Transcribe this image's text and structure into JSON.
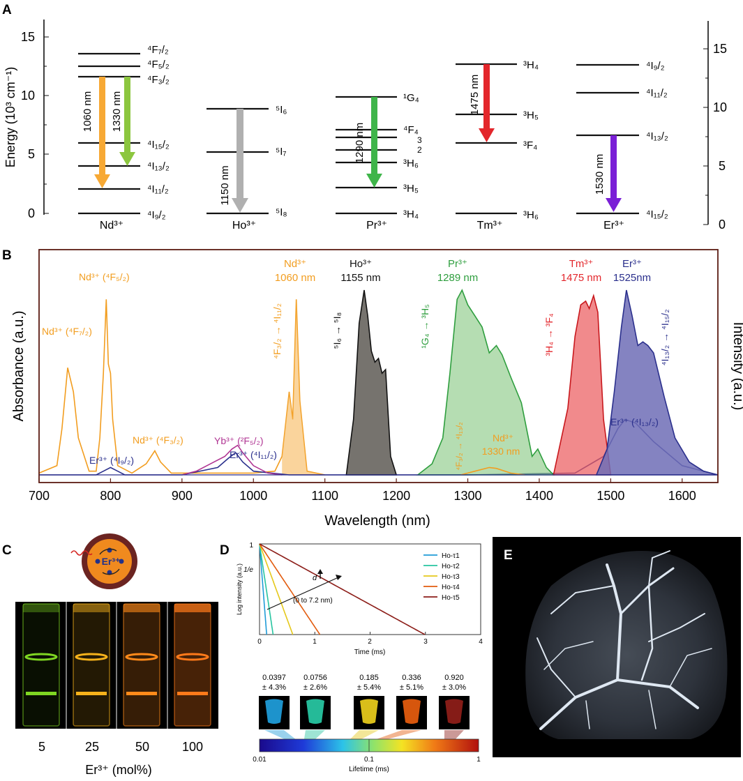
{
  "figure": {
    "panels": {
      "a": "A",
      "b": "B",
      "c": "C",
      "d": "D",
      "e": "E"
    }
  },
  "panel_a": {
    "y_axis_label": "Energy (10³ cm⁻¹)",
    "left_ticks": [
      "0",
      "5",
      "10",
      "15"
    ],
    "right_ticks": [
      "0",
      "5",
      "10",
      "15"
    ],
    "ions": [
      {
        "name": "Nd³⁺",
        "levels": [
          "⁴F₇/₂",
          "⁴F₅/₂",
          "⁴F₃/₂",
          "⁴I₁₅/₂",
          "⁴I₁₃/₂",
          "⁴I₁₁/₂",
          "⁴I₉/₂"
        ],
        "transitions": [
          {
            "label": "1060 nm",
            "color": "#f7a935"
          },
          {
            "label": "1330 nm",
            "color": "#8cc63f"
          }
        ]
      },
      {
        "name": "Ho³⁺",
        "levels": [
          "⁵I₆",
          "⁵I₇",
          "⁵I₈"
        ],
        "transitions": [
          {
            "label": "1150 nm",
            "color": "#b0b0b0"
          }
        ]
      },
      {
        "name": "Pr³⁺",
        "levels": [
          "¹G₄",
          "⁴F₄",
          "3",
          "2",
          "³H₆",
          "³H₅",
          "³H₄"
        ],
        "transitions": [
          {
            "label": "1290 nm",
            "color": "#3fb54a"
          }
        ]
      },
      {
        "name": "Tm³⁺",
        "levels": [
          "³H₄",
          "³H₅",
          "³F₄",
          "³H₆"
        ],
        "transitions": [
          {
            "label": "1475 nm",
            "color": "#e3262b"
          }
        ]
      },
      {
        "name": "Er³⁺",
        "levels": [
          "⁴I₉/₂",
          "⁴I₁₁/₂",
          "⁴I₁₃/₂",
          "⁴I₁₅/₂"
        ],
        "transitions": [
          {
            "label": "1530 nm",
            "color": "#7a1fd6"
          }
        ]
      }
    ]
  },
  "chart_data": [
    {
      "type": "area",
      "panel": "B",
      "xlabel": "Wavelength (nm)",
      "ylabel_left": "Absorbance (a.u.)",
      "ylabel_right": "Intensity (a.u.)",
      "xlim": [
        700,
        1650
      ],
      "x_ticks": [
        "700",
        "800",
        "900",
        "1000",
        "1100",
        "1200",
        "1300",
        "1400",
        "1500",
        "1600"
      ],
      "annotations": [
        "Nd³⁺ (⁴F₇/₂)",
        "Nd³⁺ (⁴F₅/₂)",
        "Nd³⁺ (⁴F₃/₂)",
        "Er³⁺ (⁴I₉/₂)",
        "Yb³⁺ (²F₅/₂)",
        "Er³⁺ (⁴I₁₁/₂)",
        "⁴F₃/₂ → ⁴I₁₁/₂",
        "⁵I₆ → ⁵I₈",
        "¹G₄ → ³H₅",
        "³H₄ → ³F₄",
        "⁴I₁₃/₂ → ⁴I₁₅/₂",
        "⁴F₃/₂ → ⁴I₁₃/₂",
        "Er³⁺ (⁴I₁₃/₂)"
      ],
      "peak_labels": [
        {
          "ion": "Nd³⁺",
          "wavelength": "1060 nm",
          "color": "#f29d1f"
        },
        {
          "ion": "Ho³⁺",
          "wavelength": "1155 nm",
          "color": "#111111"
        },
        {
          "ion": "Pr³⁺",
          "wavelength": "1289 nm",
          "color": "#2e9e3e"
        },
        {
          "ion": "Tm³⁺",
          "wavelength": "1475 nm",
          "color": "#e3262b"
        },
        {
          "ion": "Er³⁺",
          "wavelength": "1525nm",
          "color": "#2a2f8c"
        },
        {
          "ion": "Nd³⁺",
          "wavelength": "1330 nm",
          "color": "#f29d1f"
        }
      ],
      "series": [
        {
          "name": "Nd³⁺ absorbance",
          "color": "#f29d1f",
          "x": [
            700,
            725,
            732,
            740,
            748,
            755,
            770,
            780,
            785,
            790,
            794,
            797,
            800,
            803,
            810,
            830,
            850,
            862,
            870,
            885,
            900,
            950,
            1000,
            1030,
            1040,
            1050,
            1055,
            1060,
            1065,
            1075,
            1100
          ],
          "y": [
            0.01,
            0.05,
            0.25,
            0.58,
            0.45,
            0.2,
            0.02,
            0.02,
            0.2,
            0.55,
            0.95,
            0.6,
            0.55,
            0.3,
            0.05,
            0.01,
            0.06,
            0.13,
            0.07,
            0.01,
            0.01,
            0.01,
            0.01,
            0.02,
            0.1,
            0.45,
            0.3,
            0.95,
            0.4,
            0.02,
            0.0
          ]
        },
        {
          "name": "Er³⁺ absorbance",
          "color": "#2a2f8c",
          "x": [
            700,
            780,
            790,
            800,
            810,
            820,
            900,
            950,
            965,
            975,
            985,
            1000,
            1050,
            1300,
            1450,
            1490,
            1510,
            1520,
            1535,
            1560,
            1600,
            1650
          ],
          "y": [
            0.0,
            0.0,
            0.02,
            0.04,
            0.02,
            0.0,
            0.0,
            0.04,
            0.09,
            0.12,
            0.07,
            0.02,
            0.0,
            0.0,
            0.01,
            0.1,
            0.25,
            0.3,
            0.28,
            0.18,
            0.05,
            0.0
          ]
        },
        {
          "name": "Yb³⁺ absorbance",
          "color": "#b03593",
          "x": [
            900,
            920,
            940,
            960,
            970,
            978,
            985,
            1000,
            1020,
            1040
          ],
          "y": [
            0.0,
            0.02,
            0.06,
            0.1,
            0.14,
            0.16,
            0.12,
            0.05,
            0.01,
            0.0
          ]
        },
        {
          "name": "Ho³⁺ 1155 nm emission",
          "color": "#6f6b66",
          "x": [
            1130,
            1140,
            1148,
            1155,
            1160,
            1165,
            1170,
            1175,
            1180,
            1185,
            1192,
            1200
          ],
          "y": [
            0.0,
            0.3,
            0.82,
            1.0,
            0.86,
            0.67,
            0.61,
            0.63,
            0.55,
            0.57,
            0.1,
            0.0
          ]
        },
        {
          "name": "Pr³⁺ 1289 nm emission",
          "color": "#84c77e",
          "x": [
            1230,
            1250,
            1265,
            1275,
            1285,
            1292,
            1300,
            1310,
            1320,
            1330,
            1340,
            1348,
            1360,
            1375,
            1390,
            1398,
            1410,
            1420
          ],
          "y": [
            0.0,
            0.06,
            0.2,
            0.55,
            0.95,
            1.0,
            0.92,
            0.86,
            0.8,
            0.66,
            0.7,
            0.65,
            0.53,
            0.39,
            0.1,
            0.14,
            0.04,
            0.0
          ]
        },
        {
          "name": "Nd³⁺ 1330 nm emission",
          "color": "#f29d1f",
          "x": [
            1290,
            1310,
            1330,
            1340,
            1360,
            1380
          ],
          "y": [
            0.0,
            0.02,
            0.04,
            0.035,
            0.01,
            0.0
          ]
        },
        {
          "name": "Tm³⁺ 1475 nm emission",
          "color": "#ec5d5f",
          "x": [
            1420,
            1440,
            1450,
            1458,
            1465,
            1470,
            1476,
            1482,
            1490,
            1500
          ],
          "y": [
            0.0,
            0.36,
            0.75,
            0.92,
            0.94,
            0.9,
            0.97,
            0.88,
            0.3,
            0.0
          ]
        },
        {
          "name": "Er³⁺ 1525 nm emission",
          "color": "#6e6db6",
          "x": [
            1480,
            1495,
            1505,
            1515,
            1522,
            1530,
            1538,
            1545,
            1552,
            1560,
            1575,
            1590,
            1610,
            1630,
            1650
          ],
          "y": [
            0.0,
            0.14,
            0.45,
            0.8,
            1.0,
            0.86,
            0.7,
            0.72,
            0.7,
            0.66,
            0.42,
            0.2,
            0.07,
            0.02,
            0.0
          ]
        }
      ]
    },
    {
      "type": "line",
      "panel": "D",
      "xlabel": "Time (ms)",
      "ylabel": "Log intensity (a.u.)",
      "xlim": [
        0,
        4
      ],
      "x_ticks": [
        "0",
        "1",
        "2",
        "3",
        "4"
      ],
      "y_ticks": [
        "1",
        "1/e"
      ],
      "annotation": "d",
      "arrow_label": "(0 to 7.2 nm)",
      "series": [
        {
          "name": "Ho-τ1",
          "color": "#1f9bd7",
          "tau_ms": 0.0397
        },
        {
          "name": "Ho-τ2",
          "color": "#27c4a0",
          "tau_ms": 0.0756
        },
        {
          "name": "Ho-τ3",
          "color": "#e5c81b",
          "tau_ms": 0.185
        },
        {
          "name": "Ho-τ4",
          "color": "#e25b0e",
          "tau_ms": 0.336
        },
        {
          "name": "Ho-τ5",
          "color": "#8c1d18",
          "tau_ms": 0.92
        }
      ],
      "lifetime_values": [
        "0.0397",
        "0.0756",
        "0.185",
        "0.336",
        "0.920"
      ],
      "lifetime_errors": [
        "± 4.3%",
        "± 2.6%",
        "± 5.4%",
        "± 5.1%",
        "± 3.0%"
      ],
      "colorbar_ticks": [
        "0.01",
        "0.1",
        "1"
      ],
      "colorbar_label": "Lifetime (ms)"
    }
  ],
  "panel_c": {
    "core_label": "Er³⁺",
    "concentrations": [
      "5",
      "25",
      "50",
      "100"
    ],
    "vial_colors": [
      "#7fd622",
      "#f6b21b",
      "#ff8a1a",
      "#ff7a1a"
    ],
    "axis_label": "Er³⁺ (mol%)"
  }
}
